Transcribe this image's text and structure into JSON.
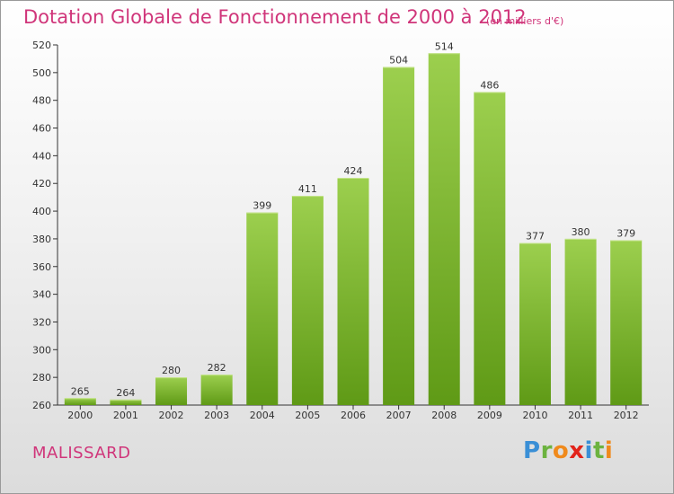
{
  "chart_data": {
    "type": "bar",
    "title": "Dotation Globale de Fonctionnement de 2000 à 2012",
    "subtitle": "(en milliers d'€)",
    "categories": [
      "2000",
      "2001",
      "2002",
      "2003",
      "2004",
      "2005",
      "2006",
      "2007",
      "2008",
      "2009",
      "2010",
      "2011",
      "2012"
    ],
    "values": [
      265,
      264,
      280,
      282,
      399,
      411,
      424,
      504,
      514,
      486,
      377,
      380,
      379
    ],
    "ylim": [
      260,
      520
    ],
    "yticks": [
      260,
      280,
      300,
      320,
      340,
      360,
      380,
      400,
      420,
      440,
      460,
      480,
      500,
      520
    ],
    "grid": false,
    "xlabel": "",
    "ylabel": ""
  },
  "footer": {
    "town": "MALISSARD"
  },
  "logo": {
    "text": "Proxiti",
    "letter_colors": [
      "#3a8fd6",
      "#6cb33f",
      "#f08a1c",
      "#e2231a",
      "#3a8fd6",
      "#6cb33f",
      "#f08a1c"
    ]
  },
  "colors": {
    "title": "#d0357a",
    "bar_top": "#9ccf4e",
    "bar_bottom": "#5f9a16",
    "axis": "#333333"
  }
}
